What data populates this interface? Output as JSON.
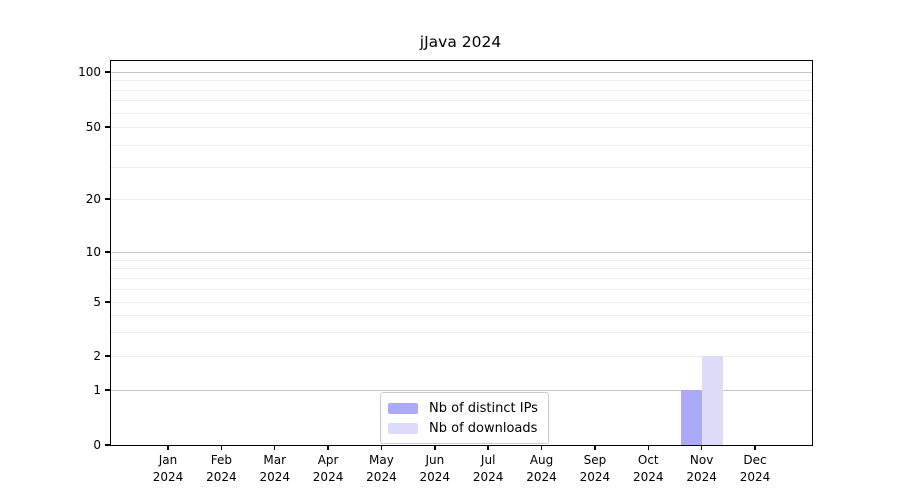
{
  "title": "jJava 2024",
  "chart_data": {
    "type": "bar",
    "title": "jJava 2024",
    "categories": [
      "Jan",
      "Feb",
      "Mar",
      "Apr",
      "May",
      "Jun",
      "Jul",
      "Aug",
      "Sep",
      "Oct",
      "Nov",
      "Dec"
    ],
    "year": "2024",
    "series": [
      {
        "name": "Nb of distinct IPs",
        "color": "#aaaaf8",
        "values": [
          0,
          0,
          0,
          0,
          0,
          0,
          0,
          0,
          0,
          0,
          1,
          0
        ]
      },
      {
        "name": "Nb of downloads",
        "color": "#dcdcf8",
        "values": [
          0,
          0,
          0,
          0,
          0,
          0,
          0,
          0,
          0,
          0,
          2,
          0
        ]
      }
    ],
    "xlabel": "",
    "ylabel": "",
    "y_axis": {
      "scale": "log-like",
      "range": [
        0,
        100
      ],
      "major_ticks": [
        0,
        1,
        2,
        5,
        10,
        20,
        50,
        100
      ],
      "decade_gridlines": [
        1,
        10,
        100
      ],
      "minor_gridlines": [
        3,
        4,
        6,
        7,
        8,
        9,
        30,
        40,
        60,
        70,
        80,
        90
      ]
    },
    "legend": {
      "position": "lower center",
      "entries": [
        "Nb of distinct IPs",
        "Nb of downloads"
      ]
    },
    "grid": "on"
  },
  "colors": {
    "bar_distinct_ips": "#aaaaf8",
    "bar_downloads": "#dcdcf8",
    "grid_major": "#c6c6c6",
    "grid_minor": "#ececec",
    "axis": "#000000",
    "legend_border": "#cbcbcb",
    "background": "#ffffff"
  }
}
